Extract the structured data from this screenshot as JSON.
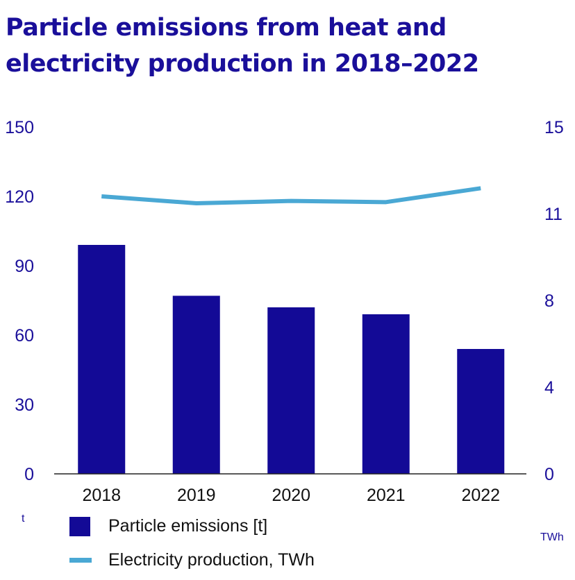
{
  "title": {
    "line1": "Particle emissions from  heat and",
    "line2": "electricity production in 2018–2022"
  },
  "colors": {
    "bar": "#130a96",
    "line": "#4aa8d4",
    "axis_text": "#1a0f9a",
    "title": "#1a0f9a"
  },
  "chart_data": {
    "type": "bar+line",
    "categories": [
      "2018",
      "2019",
      "2020",
      "2021",
      "2022"
    ],
    "series": [
      {
        "name": "Particle emissions [t]",
        "type": "bar",
        "axis": "left",
        "values": [
          99,
          77,
          72,
          69,
          54
        ]
      },
      {
        "name": "Electricity production, TWh",
        "type": "line",
        "axis": "right",
        "values": [
          12.0,
          11.7,
          11.8,
          11.75,
          12.35
        ]
      }
    ],
    "left_axis": {
      "unit_label": "t",
      "ylim": [
        0,
        150
      ],
      "ticks": [
        0,
        30,
        60,
        90,
        120,
        150
      ],
      "tick_labels": [
        "0",
        "30",
        "60",
        "90",
        "120",
        "150"
      ]
    },
    "right_axis": {
      "unit_label": "TWh",
      "ylim": [
        0,
        15
      ],
      "ticks": [
        0,
        3.75,
        7.5,
        11.25,
        15
      ],
      "tick_labels": [
        "0",
        "4",
        "8",
        "11",
        "15"
      ]
    },
    "grid": false,
    "legend_position": "bottom-left"
  }
}
